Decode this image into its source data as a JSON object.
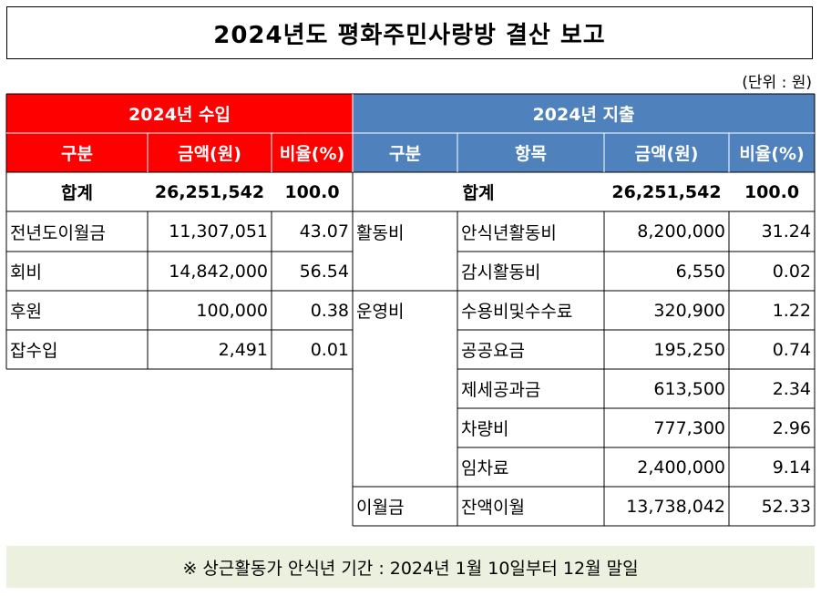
{
  "title": "2024년도 평화주민사랑방 결산 보고",
  "unit": "(단위 : 원)",
  "income": {
    "header": "2024년 수입",
    "columns": [
      "구분",
      "금액(원)",
      "비율(%)"
    ],
    "total": {
      "label": "합계",
      "amount": "26,251,542",
      "ratio": "100.0"
    },
    "rows": [
      {
        "label": "전년도이월금",
        "amount": "11,307,051",
        "ratio": "43.07"
      },
      {
        "label": "회비",
        "amount": "14,842,000",
        "ratio": "56.54"
      },
      {
        "label": "후원",
        "amount": "100,000",
        "ratio": "0.38"
      },
      {
        "label": "잡수입",
        "amount": "2,491",
        "ratio": "0.01"
      }
    ]
  },
  "expense": {
    "header": "2024년 지출",
    "columns": [
      "구분",
      "항목",
      "금액(원)",
      "비율(%)"
    ],
    "total": {
      "label": "합계",
      "amount": "26,251,542",
      "ratio": "100.0"
    },
    "groups": [
      {
        "label": "활동비",
        "items": [
          {
            "item": "안식년활동비",
            "amount": "8,200,000",
            "ratio": "31.24"
          },
          {
            "item": "감시활동비",
            "amount": "6,550",
            "ratio": "0.02"
          }
        ]
      },
      {
        "label": "운영비",
        "items": [
          {
            "item": "수용비및수수료",
            "amount": "320,900",
            "ratio": "1.22"
          },
          {
            "item": "공공요금",
            "amount": "195,250",
            "ratio": "0.74"
          },
          {
            "item": "제세공과금",
            "amount": "613,500",
            "ratio": "2.34"
          },
          {
            "item": "차량비",
            "amount": "777,300",
            "ratio": "2.96"
          },
          {
            "item": "임차료",
            "amount": "2,400,000",
            "ratio": "9.14"
          }
        ]
      },
      {
        "label": "이월금",
        "items": [
          {
            "item": "잔액이월",
            "amount": "13,738,042",
            "ratio": "52.33"
          }
        ]
      }
    ]
  },
  "note": "※ 상근활동가 안식년 기간 :  2024년 1월 10일부터 12월 말일",
  "colors": {
    "income_header": "#ff0000",
    "expense_header": "#4f81bd",
    "note_bg": "#ebf1de"
  }
}
